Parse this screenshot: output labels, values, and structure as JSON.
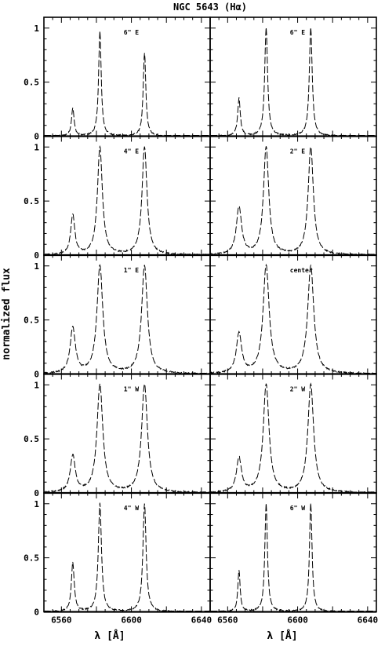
{
  "chart_data": {
    "type": "line",
    "title": "NGC 5643 (Hα)",
    "xlabel": "λ [Å]",
    "ylabel": "normalized flux",
    "xlim": [
      6550,
      6645
    ],
    "ylim": [
      0,
      1.1
    ],
    "xticks": [
      6560,
      6600,
      6640
    ],
    "yticks": [
      0,
      0.5,
      1
    ],
    "grid": false,
    "layout": "5 rows x 2 columns of panels, shared axes",
    "panels": [
      {
        "label": "6\" E",
        "lines": [
          {
            "center": 6566.5,
            "amp": 0.26,
            "width": 0.9
          },
          {
            "center": 6582,
            "amp": 0.97,
            "width": 0.9
          },
          {
            "center": 6607.5,
            "amp": 0.77,
            "width": 0.9
          }
        ]
      },
      {
        "label": "6\" E",
        "lines": [
          {
            "center": 6566.5,
            "amp": 0.35,
            "width": 0.9
          },
          {
            "center": 6582,
            "amp": 1.0,
            "width": 1.0
          },
          {
            "center": 6607.5,
            "amp": 1.0,
            "width": 1.0
          }
        ]
      },
      {
        "label": "4\" E",
        "lines": [
          {
            "center": 6566.5,
            "amp": 0.37,
            "width": 1.4
          },
          {
            "center": 6582,
            "amp": 1.0,
            "width": 1.7
          },
          {
            "center": 6607.5,
            "amp": 1.0,
            "width": 1.7
          }
        ]
      },
      {
        "label": "2\" E",
        "lines": [
          {
            "center": 6566.5,
            "amp": 0.44,
            "width": 1.8
          },
          {
            "center": 6582,
            "amp": 1.0,
            "width": 1.8
          },
          {
            "center": 6607.5,
            "amp": 1.0,
            "width": 1.8
          }
        ]
      },
      {
        "label": "1\" E",
        "lines": [
          {
            "center": 6566.5,
            "amp": 0.42,
            "width": 1.8
          },
          {
            "center": 6582,
            "amp": 1.0,
            "width": 2.0
          },
          {
            "center": 6607.5,
            "amp": 1.0,
            "width": 2.0
          }
        ]
      },
      {
        "label": "center",
        "lines": [
          {
            "center": 6566.5,
            "amp": 0.37,
            "width": 1.8
          },
          {
            "center": 6582,
            "amp": 1.0,
            "width": 2.1
          },
          {
            "center": 6607.5,
            "amp": 1.0,
            "width": 2.1
          }
        ]
      },
      {
        "label": "1\" W",
        "lines": [
          {
            "center": 6566.5,
            "amp": 0.34,
            "width": 1.7
          },
          {
            "center": 6582,
            "amp": 1.0,
            "width": 2.0
          },
          {
            "center": 6607.5,
            "amp": 1.0,
            "width": 2.0
          }
        ]
      },
      {
        "label": "2\" W",
        "lines": [
          {
            "center": 6566.5,
            "amp": 0.32,
            "width": 1.7
          },
          {
            "center": 6582,
            "amp": 1.0,
            "width": 2.0
          },
          {
            "center": 6607.5,
            "amp": 1.0,
            "width": 2.0
          }
        ]
      },
      {
        "label": "4\" W",
        "lines": [
          {
            "center": 6566.5,
            "amp": 0.45,
            "width": 1.0
          },
          {
            "center": 6582,
            "amp": 1.0,
            "width": 1.1
          },
          {
            "center": 6607.5,
            "amp": 1.0,
            "width": 1.1
          }
        ]
      },
      {
        "label": "6\" W",
        "lines": [
          {
            "center": 6566.5,
            "amp": 0.38,
            "width": 0.8
          },
          {
            "center": 6582,
            "amp": 1.0,
            "width": 0.9
          },
          {
            "center": 6607.5,
            "amp": 1.0,
            "width": 0.9
          }
        ]
      }
    ]
  }
}
